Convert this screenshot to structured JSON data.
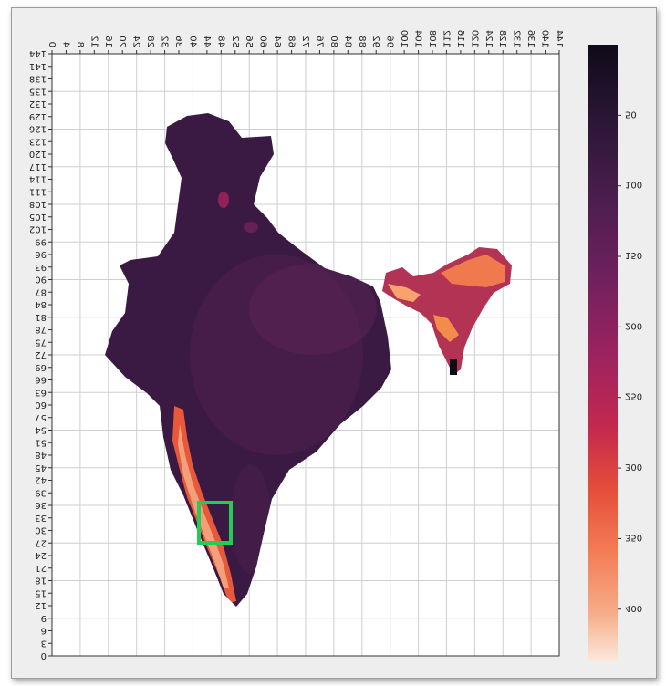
{
  "chart_data": {
    "type": "heatmap",
    "title": "",
    "xlabel": "",
    "ylabel": "",
    "image_orientation": "mirrored-and-flipped",
    "grid": true,
    "x_ticks": [
      "0",
      "4",
      "8",
      "12",
      "16",
      "20",
      "24",
      "28",
      "32",
      "36",
      "40",
      "44",
      "48",
      "52",
      "56",
      "60",
      "64",
      "68",
      "72",
      "76",
      "80",
      "84",
      "88",
      "92",
      "96",
      "100",
      "104",
      "108",
      "112",
      "116",
      "120",
      "124",
      "128",
      "132",
      "136",
      "140",
      "144"
    ],
    "y_ticks": [
      "0",
      "3",
      "6",
      "9",
      "12",
      "15",
      "18",
      "21",
      "24",
      "27",
      "30",
      "33",
      "36",
      "39",
      "42",
      "45",
      "48",
      "51",
      "54",
      "57",
      "60",
      "63",
      "66",
      "69",
      "72",
      "75",
      "78",
      "81",
      "84",
      "87",
      "90",
      "93",
      "96",
      "99",
      "102",
      "105",
      "108",
      "111",
      "114",
      "117",
      "120",
      "123",
      "126",
      "129",
      "132",
      "135",
      "138",
      "141",
      "144"
    ],
    "colorbar": {
      "colormap": "rocket",
      "ticks": [
        "50",
        "100",
        "150",
        "200",
        "250",
        "300",
        "350",
        "400"
      ],
      "tick_values": [
        50,
        100,
        150,
        200,
        250,
        300,
        350,
        400
      ],
      "range": [
        0,
        437
      ]
    },
    "highlight_box": {
      "x": [
        40,
        44
      ],
      "y": [
        30,
        36
      ],
      "color": "#22cc55"
    },
    "region": "India",
    "high_value_areas": [
      "Western Ghats / Konkan–Malabar coast",
      "Northeast India (Meghalaya / Assam)"
    ]
  }
}
